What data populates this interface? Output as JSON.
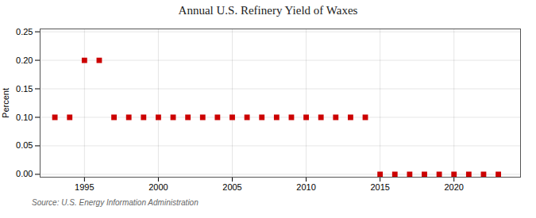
{
  "chart_data": {
    "type": "scatter",
    "title": "Annual U.S. Refinery Yield of Waxes",
    "ylabel": "Percent",
    "caption": "Source: U.S. Energy Information Administration",
    "x": [
      1993,
      1994,
      1995,
      1996,
      1997,
      1998,
      1999,
      2000,
      2001,
      2002,
      2003,
      2004,
      2005,
      2006,
      2007,
      2008,
      2009,
      2010,
      2011,
      2012,
      2013,
      2014,
      2015,
      2016,
      2017,
      2018,
      2019,
      2020,
      2021,
      2022,
      2023
    ],
    "values": [
      0.1,
      0.1,
      0.2,
      0.2,
      0.1,
      0.1,
      0.1,
      0.1,
      0.1,
      0.1,
      0.1,
      0.1,
      0.1,
      0.1,
      0.1,
      0.1,
      0.1,
      0.1,
      0.1,
      0.1,
      0.1,
      0.1,
      0.0,
      0.0,
      0.0,
      0.0,
      0.0,
      0.0,
      0.0,
      0.0,
      0.0
    ],
    "color": "#cc0000",
    "marker": "square",
    "xlim": [
      1992.0,
      2024.5
    ],
    "xticks": [
      1995,
      2000,
      2005,
      2010,
      2015,
      2020
    ],
    "ylim": [
      -0.005,
      0.255
    ],
    "yticks": [
      {
        "value": 0.0,
        "label": "0.00"
      },
      0.05,
      {
        "value": 0.1,
        "label": "0.10"
      },
      0.15,
      {
        "value": 0.2,
        "label": "0.20"
      },
      0.25
    ],
    "grid": true
  }
}
